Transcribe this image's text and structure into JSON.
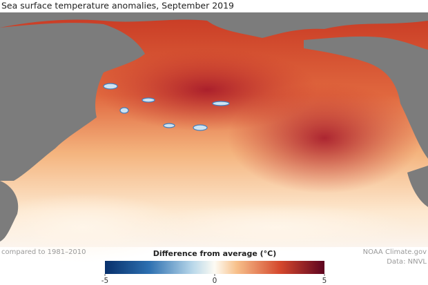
{
  "title": "Sea surface temperature anomalies, September 2019",
  "baseline_note": "compared to 1981–2010",
  "colorbar": {
    "label": "Difference from average (°C)",
    "lim": [
      -5,
      5
    ],
    "ticks": [
      -5,
      0,
      5
    ]
  },
  "credits": [
    "NOAA Climate.gov",
    "Data: NNVL"
  ]
}
